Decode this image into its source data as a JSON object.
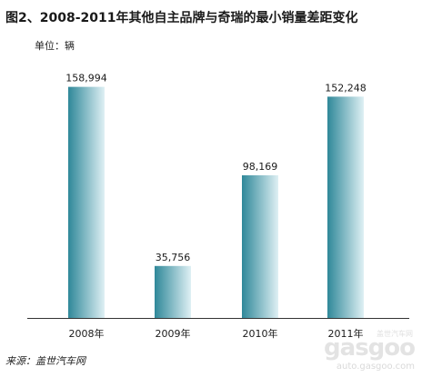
{
  "title": "图2、2008-2011年其他自主品牌与奇瑞的最小销量差距变化",
  "unit_label": "单位：辆",
  "source_label": "来源：盖世汽车网",
  "watermark": {
    "logo": "gasgoo",
    "sub": "盖世汽车网",
    "url": "auto.gasgoo.com"
  },
  "colors": {
    "bar_dark": "#2f8899",
    "bar_light": "#dff0f4",
    "axis": "#333333"
  },
  "chart_data": {
    "type": "bar",
    "categories": [
      "2008年",
      "2009年",
      "2010年",
      "2011年"
    ],
    "values": [
      158994,
      35756,
      98169,
      152248
    ],
    "value_labels": [
      "158,994",
      "35,756",
      "98,169",
      "152,248"
    ],
    "ylim": [
      0,
      175000
    ],
    "grid": false,
    "legend": "none"
  }
}
